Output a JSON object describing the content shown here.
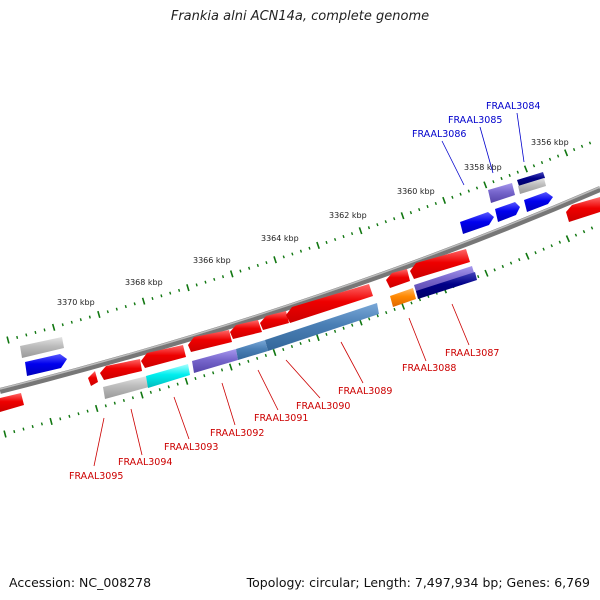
{
  "header": {
    "title": "Frankia alni ACN14a, complete genome"
  },
  "footer": {
    "accession": "Accession: NC_008278",
    "summary": "Topology: circular; Length: 7,497,934 bp; Genes: 6,769"
  },
  "scale": {
    "ticks": [
      {
        "label": "3356 kbp"
      },
      {
        "label": "3358 kbp"
      },
      {
        "label": "3360 kbp"
      },
      {
        "label": "3362 kbp"
      },
      {
        "label": "3364 kbp"
      },
      {
        "label": "3366 kbp"
      },
      {
        "label": "3368 kbp"
      },
      {
        "label": "3370 kbp"
      }
    ]
  },
  "genes": {
    "forward": [
      {
        "label": "FRAAL3084"
      },
      {
        "label": "FRAAL3085"
      },
      {
        "label": "FRAAL3086"
      }
    ],
    "reverse": [
      {
        "label": "FRAAL3087"
      },
      {
        "label": "FRAAL3088"
      },
      {
        "label": "FRAAL3089"
      },
      {
        "label": "FRAAL3090"
      },
      {
        "label": "FRAAL3091"
      },
      {
        "label": "FRAAL3092"
      },
      {
        "label": "FRAAL3093"
      },
      {
        "label": "FRAAL3094"
      },
      {
        "label": "FRAAL3095"
      }
    ]
  },
  "colors": {
    "red": "#ee0000",
    "blue": "#0000ee",
    "gray": "#bbbbbb",
    "purple": "#7766cc",
    "steel": "#4a7fb5",
    "navy": "#000088",
    "cyan": "#00eeee",
    "orange": "#ff8800",
    "tick_green": "#117711"
  }
}
